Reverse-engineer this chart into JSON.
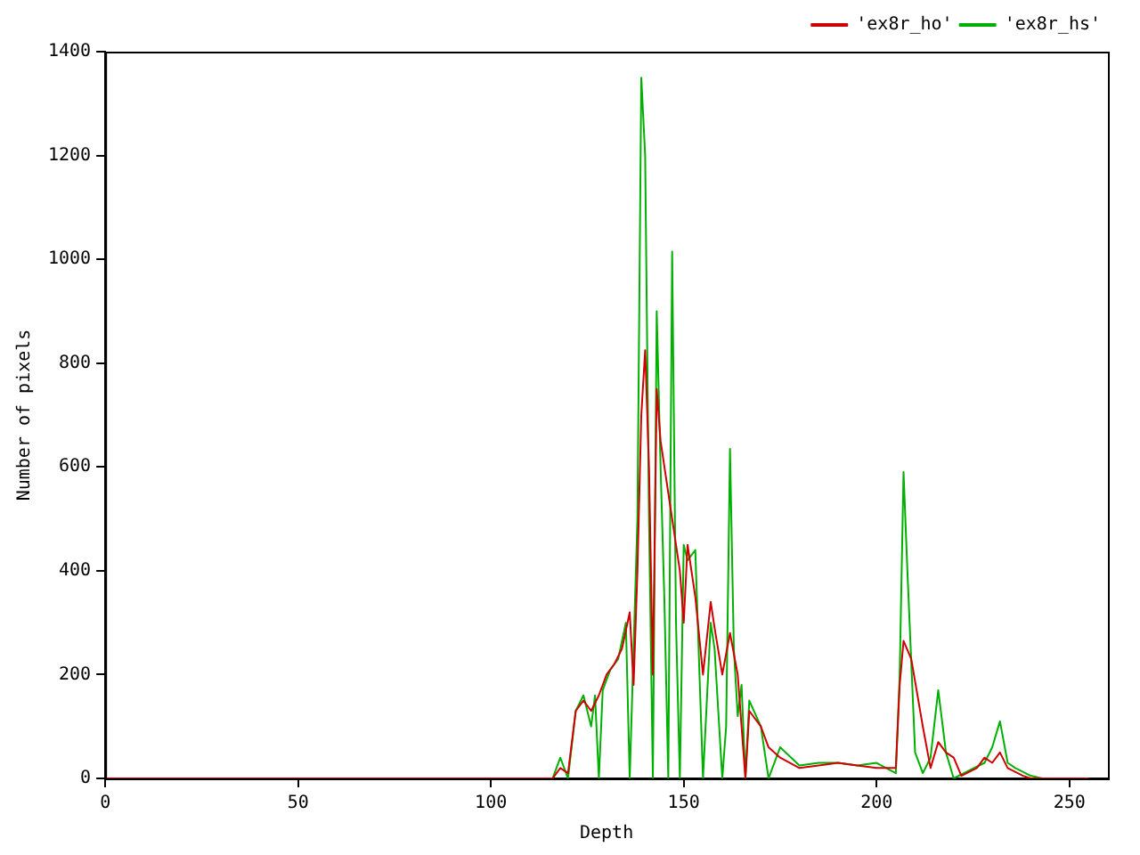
{
  "chart_data": {
    "type": "line",
    "xlabel": "Depth",
    "ylabel": "Number of pixels",
    "xlim": [
      0,
      260
    ],
    "xticks": [
      0,
      50,
      100,
      150,
      200,
      250
    ],
    "ylim": [
      0,
      1400
    ],
    "yticks": [
      0,
      200,
      400,
      600,
      800,
      1000,
      1200,
      1400
    ],
    "grid": false,
    "legend": "top right",
    "marker": "none",
    "line_style": "solid",
    "series": [
      {
        "name": "'ex8r_ho'",
        "color": "#d00000",
        "x": [
          0,
          110,
          116,
          118,
          120,
          122,
          124,
          126,
          128,
          130,
          132,
          134,
          136,
          137,
          138,
          139,
          140,
          141,
          142,
          143,
          144,
          145,
          147,
          149,
          150,
          151,
          153,
          155,
          157,
          158,
          160,
          162,
          164,
          166,
          167,
          170,
          172,
          175,
          180,
          185,
          190,
          195,
          200,
          205,
          206,
          207,
          209,
          212,
          214,
          216,
          218,
          220,
          222,
          226,
          228,
          230,
          232,
          234,
          238,
          240,
          255
        ],
        "values": [
          0,
          0,
          0,
          20,
          10,
          130,
          150,
          130,
          160,
          200,
          220,
          250,
          320,
          180,
          400,
          700,
          825,
          600,
          200,
          750,
          650,
          600,
          500,
          400,
          300,
          450,
          350,
          200,
          340,
          290,
          200,
          280,
          200,
          0,
          130,
          100,
          60,
          40,
          20,
          25,
          30,
          25,
          20,
          20,
          180,
          265,
          230,
          100,
          20,
          70,
          50,
          40,
          5,
          20,
          40,
          30,
          50,
          20,
          5,
          0,
          0
        ]
      },
      {
        "name": "'ex8r_hs'",
        "color": "#00b000",
        "x": [
          0,
          110,
          116,
          118,
          120,
          122,
          124,
          126,
          127,
          128,
          129,
          131,
          133,
          135,
          136,
          137,
          138,
          139,
          140,
          141,
          142,
          143,
          144,
          145,
          146,
          147,
          148,
          149,
          150,
          151,
          153,
          155,
          156,
          157,
          158,
          160,
          161,
          162,
          163,
          164,
          165,
          166,
          167,
          170,
          172,
          175,
          180,
          185,
          190,
          195,
          200,
          205,
          206,
          207,
          208,
          210,
          212,
          214,
          216,
          218,
          220,
          224,
          228,
          230,
          232,
          234,
          236,
          240,
          243,
          255
        ],
        "values": [
          0,
          0,
          0,
          40,
          0,
          130,
          160,
          100,
          160,
          0,
          170,
          210,
          230,
          300,
          0,
          250,
          500,
          1350,
          1200,
          500,
          0,
          900,
          600,
          340,
          0,
          1015,
          300,
          0,
          450,
          420,
          440,
          0,
          150,
          300,
          250,
          0,
          100,
          635,
          250,
          120,
          180,
          0,
          150,
          100,
          0,
          60,
          25,
          30,
          30,
          25,
          30,
          10,
          200,
          590,
          400,
          50,
          10,
          40,
          170,
          50,
          0,
          15,
          30,
          60,
          110,
          30,
          20,
          5,
          0,
          0
        ]
      }
    ]
  }
}
